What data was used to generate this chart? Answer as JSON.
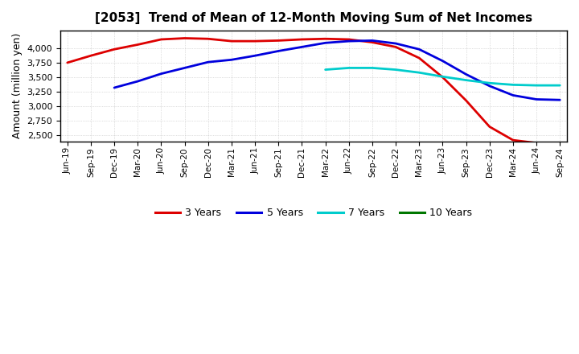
{
  "title": "[2053]  Trend of Mean of 12-Month Moving Sum of Net Incomes",
  "ylabel": "Amount (million yen)",
  "background_color": "#ffffff",
  "grid_color": "#b0b0b0",
  "xlabels": [
    "Jun-19",
    "Sep-19",
    "Dec-19",
    "Mar-20",
    "Jun-20",
    "Sep-20",
    "Dec-20",
    "Mar-21",
    "Jun-21",
    "Sep-21",
    "Dec-21",
    "Mar-22",
    "Jun-22",
    "Sep-22",
    "Dec-22",
    "Mar-23",
    "Jun-23",
    "Sep-23",
    "Dec-23",
    "Mar-24",
    "Jun-24",
    "Sep-24"
  ],
  "ylim": [
    2400,
    4300
  ],
  "yticks": [
    2500,
    2750,
    3000,
    3250,
    3500,
    3750,
    4000
  ],
  "series": {
    "3 Years": {
      "color": "#dd0000",
      "data_x": [
        0,
        1,
        2,
        3,
        4,
        5,
        6,
        7,
        8,
        9,
        10,
        11,
        12,
        13,
        14,
        15,
        16,
        17,
        18,
        19,
        20,
        21
      ],
      "data_y": [
        3750,
        3870,
        3980,
        4060,
        4150,
        4170,
        4160,
        4120,
        4120,
        4130,
        4150,
        4160,
        4150,
        4100,
        4020,
        3830,
        3500,
        3100,
        2650,
        2420,
        2370,
        2360
      ]
    },
    "5 Years": {
      "color": "#0000dd",
      "data_x": [
        2,
        3,
        4,
        5,
        6,
        7,
        8,
        9,
        10,
        11,
        12,
        13,
        14,
        15,
        16,
        17,
        18,
        19,
        20,
        21
      ],
      "data_y": [
        3320,
        3430,
        3560,
        3660,
        3760,
        3800,
        3870,
        3950,
        4020,
        4090,
        4120,
        4130,
        4080,
        3980,
        3780,
        3550,
        3350,
        3190,
        3120,
        3110
      ]
    },
    "7 Years": {
      "color": "#00cccc",
      "data_x": [
        11,
        12,
        13,
        14,
        15,
        16,
        17,
        18,
        19,
        20,
        21
      ],
      "data_y": [
        3630,
        3660,
        3660,
        3630,
        3580,
        3510,
        3450,
        3400,
        3370,
        3360,
        3360
      ]
    },
    "10 Years": {
      "color": "#007700",
      "data_x": [],
      "data_y": []
    }
  },
  "legend_colors": {
    "3 Years": "#dd0000",
    "5 Years": "#0000dd",
    "7 Years": "#00cccc",
    "10 Years": "#007700"
  },
  "title_fontsize": 11,
  "ylabel_fontsize": 9,
  "ytick_fontsize": 8,
  "xtick_fontsize": 7.5,
  "legend_fontsize": 9,
  "linewidth": 2.0
}
